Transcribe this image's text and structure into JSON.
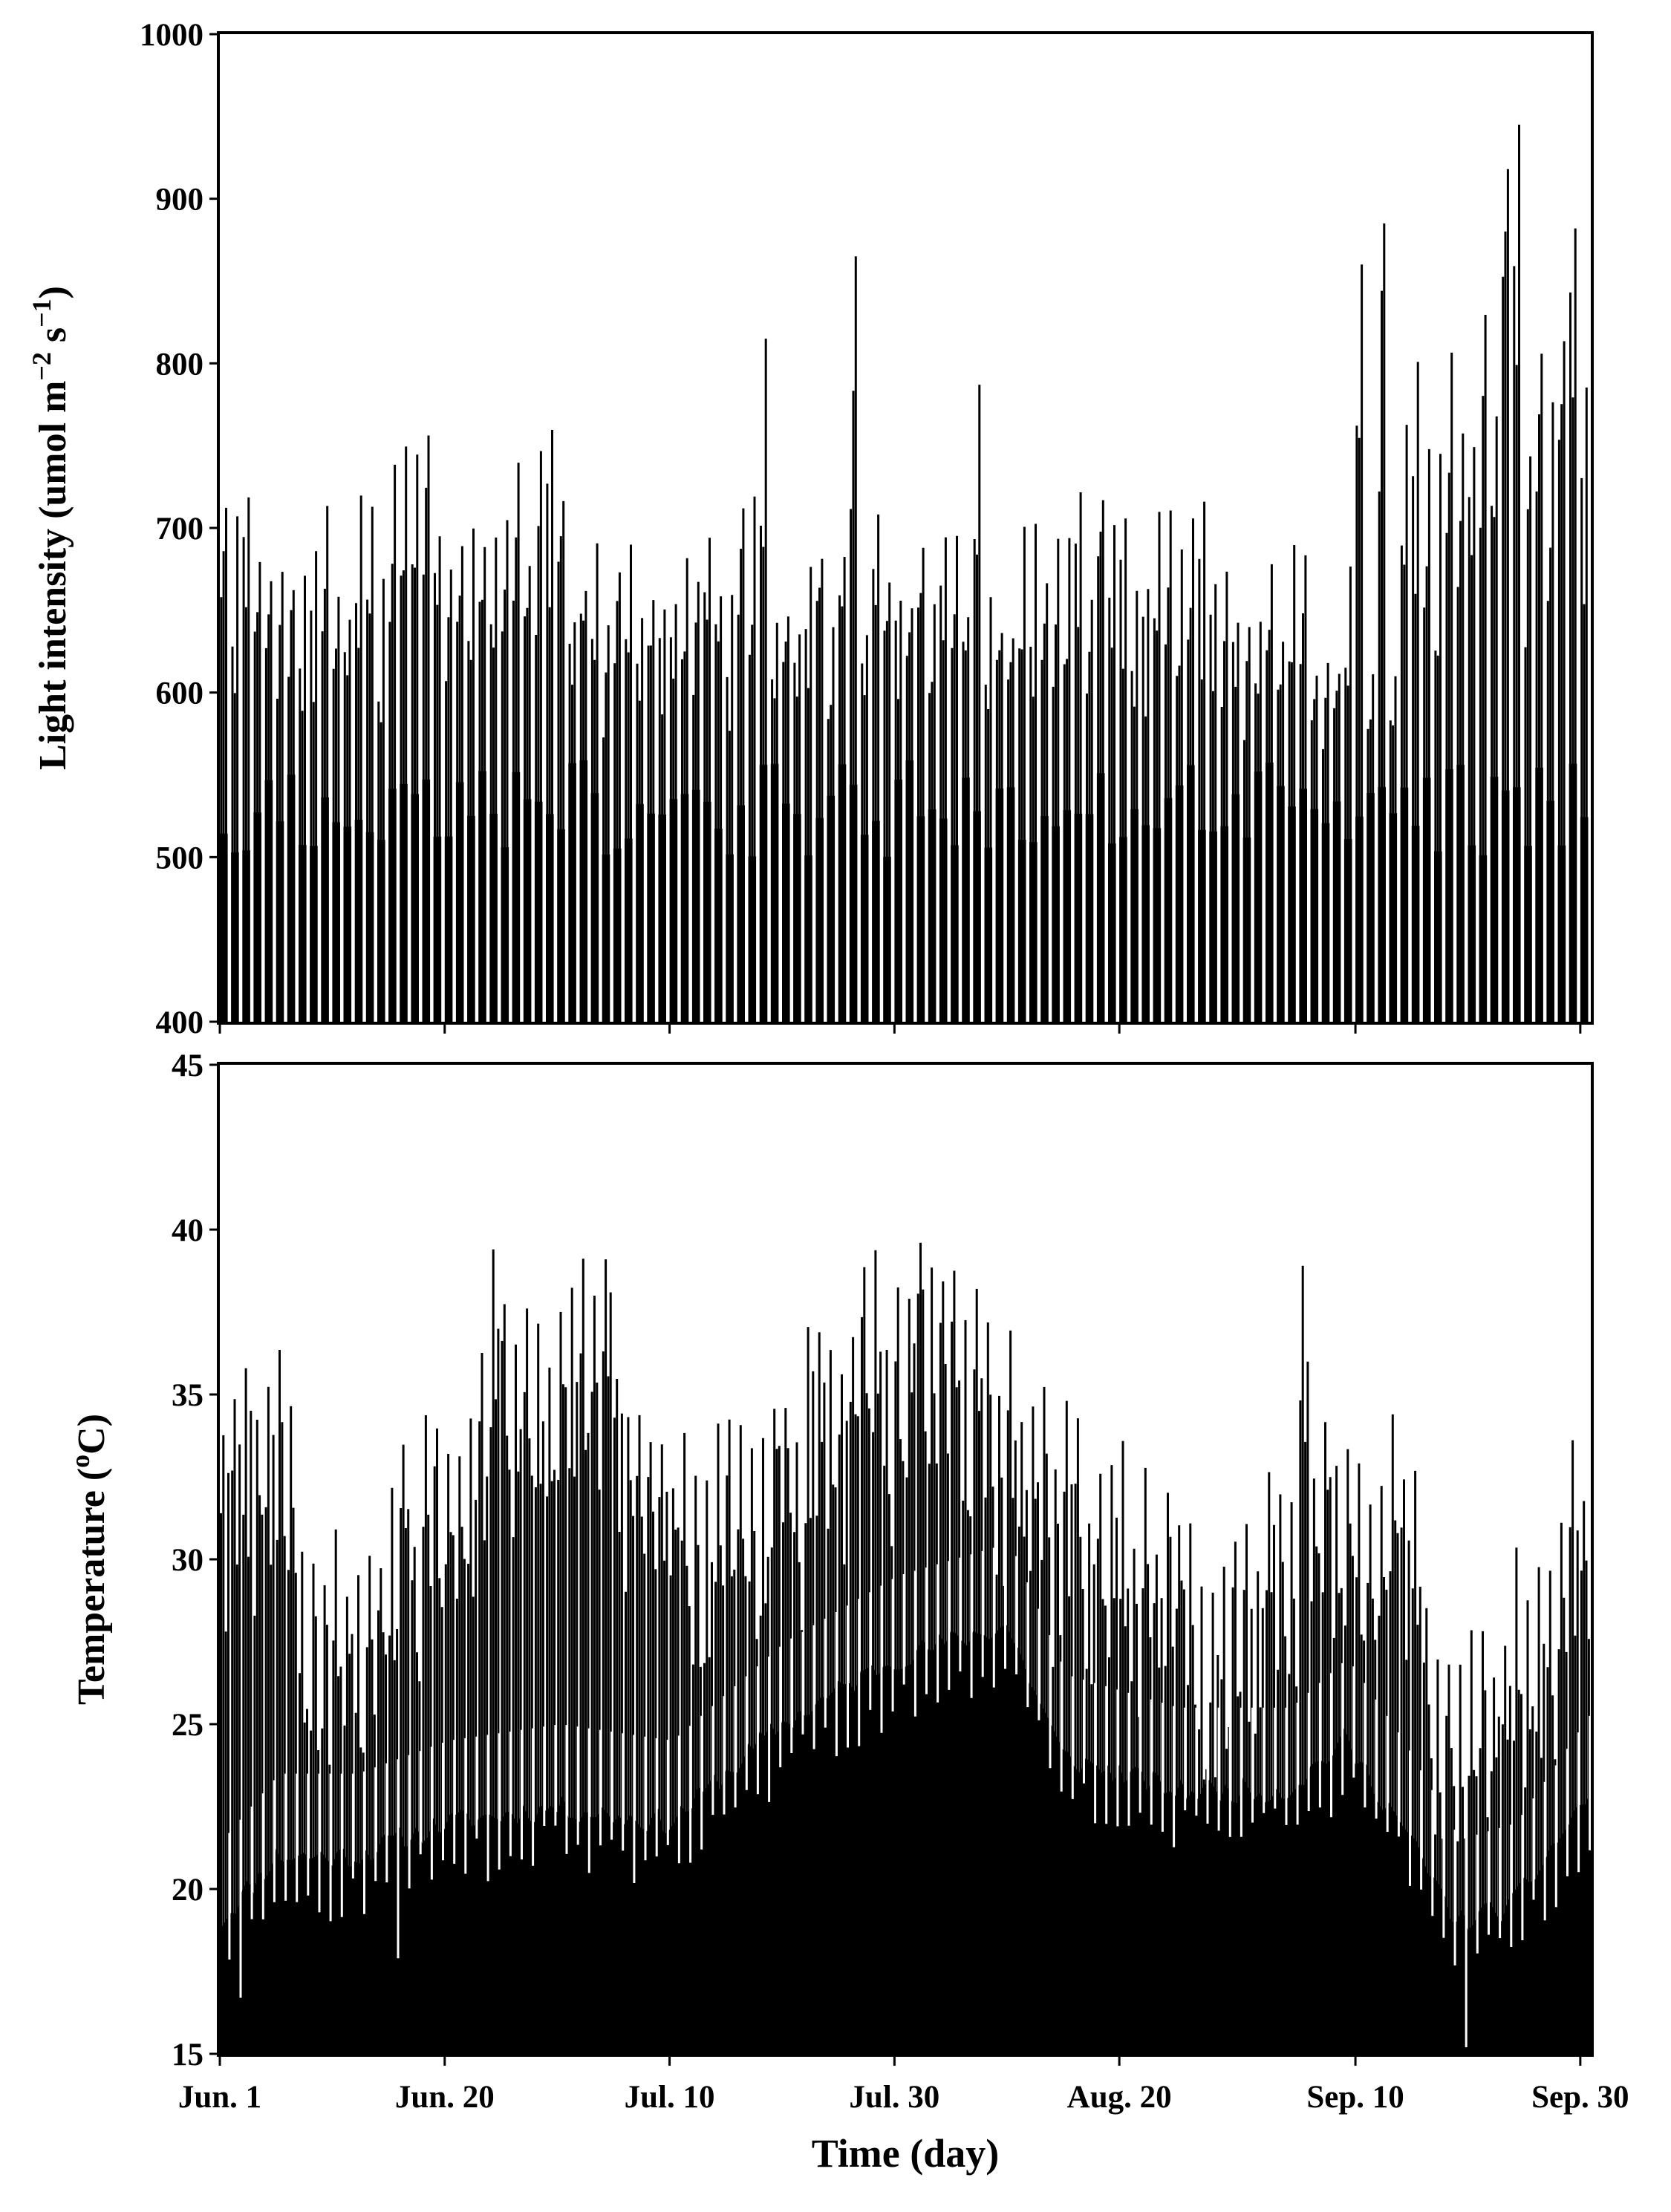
{
  "chart_data": [
    {
      "type": "bar",
      "ylabel": "Light intensity (umol m",
      "ylabel_sup1": "−2",
      "ylabel_mid": " s",
      "ylabel_sup2": "−1",
      "ylabel_end": ")",
      "ylim": [
        400,
        1000
      ],
      "yticks": [
        400,
        500,
        600,
        700,
        800,
        900,
        1000
      ],
      "grid": false,
      "daily_max_spikes": {
        "day_ranges": [
          [
            0,
            15
          ],
          [
            15,
            30
          ],
          [
            30,
            45
          ],
          [
            45,
            60
          ],
          [
            60,
            75
          ],
          [
            75,
            90
          ],
          [
            90,
            105
          ],
          [
            105,
            122
          ]
        ],
        "typical_values": [
          690,
          730,
          700,
          690,
          690,
          700,
          660,
          800
        ],
        "notable_peaks": [
          {
            "day": 48.5,
            "value": 815
          },
          {
            "day": 56.5,
            "value": 865
          },
          {
            "day": 67.5,
            "value": 787
          },
          {
            "day": 101.5,
            "value": 860
          },
          {
            "day": 103.5,
            "value": 885
          },
          {
            "day": 114.5,
            "value": 918
          },
          {
            "day": 115.5,
            "value": 945
          },
          {
            "day": 120.5,
            "value": 882
          }
        ]
      },
      "baseline_values": [
        500,
        560
      ]
    },
    {
      "type": "bar",
      "ylabel": "Temperature (",
      "ylabel_sup": "o",
      "ylabel_end": "C)",
      "xlabel": "Time (day)",
      "ylim": [
        15,
        45
      ],
      "yticks": [
        15,
        20,
        25,
        30,
        35,
        40,
        45
      ],
      "x_tick_days": [
        0,
        20,
        40,
        60,
        80,
        101,
        121
      ],
      "x_tick_labels": [
        "Jun. 1",
        "Jun. 20",
        "Jul. 10",
        "Jul. 30",
        "Aug. 20",
        "Sep. 10",
        "Sep. 30"
      ],
      "grid": false,
      "daily_min_envelope": [
        {
          "day": 0,
          "value": 19
        },
        {
          "day": 5,
          "value": 21
        },
        {
          "day": 12,
          "value": 21
        },
        {
          "day": 20,
          "value": 22
        },
        {
          "day": 30,
          "value": 22.5
        },
        {
          "day": 40,
          "value": 22
        },
        {
          "day": 50,
          "value": 25
        },
        {
          "day": 60,
          "value": 27
        },
        {
          "day": 70,
          "value": 28
        },
        {
          "day": 75,
          "value": 24
        },
        {
          "day": 85,
          "value": 23
        },
        {
          "day": 95,
          "value": 23
        },
        {
          "day": 100,
          "value": 24.5
        },
        {
          "day": 105,
          "value": 22
        },
        {
          "day": 110,
          "value": 19
        },
        {
          "day": 115,
          "value": 19.5
        },
        {
          "day": 122,
          "value": 23
        }
      ],
      "daily_max_envelope": [
        {
          "day": 0,
          "value": 33
        },
        {
          "day": 5,
          "value": 35
        },
        {
          "day": 10,
          "value": 29
        },
        {
          "day": 20,
          "value": 33
        },
        {
          "day": 25,
          "value": 36
        },
        {
          "day": 33,
          "value": 38
        },
        {
          "day": 40,
          "value": 33
        },
        {
          "day": 50,
          "value": 34
        },
        {
          "day": 60,
          "value": 38.5
        },
        {
          "day": 70,
          "value": 36
        },
        {
          "day": 80,
          "value": 32
        },
        {
          "day": 90,
          "value": 29
        },
        {
          "day": 98,
          "value": 33
        },
        {
          "day": 105,
          "value": 33
        },
        {
          "day": 110,
          "value": 27
        },
        {
          "day": 115,
          "value": 29
        },
        {
          "day": 122,
          "value": 33
        }
      ],
      "notable_peaks": [
        {
          "day": 24.5,
          "value": 39.4
        },
        {
          "day": 34.5,
          "value": 39.1
        },
        {
          "day": 62.5,
          "value": 39.6
        },
        {
          "day": 67.5,
          "value": 38.2
        },
        {
          "day": 96.5,
          "value": 38.9
        }
      ],
      "notable_minima": [
        {
          "day": 1.5,
          "value": 16.7
        },
        {
          "day": 15.5,
          "value": 17.9
        },
        {
          "day": 110.5,
          "value": 15.2
        }
      ]
    }
  ]
}
